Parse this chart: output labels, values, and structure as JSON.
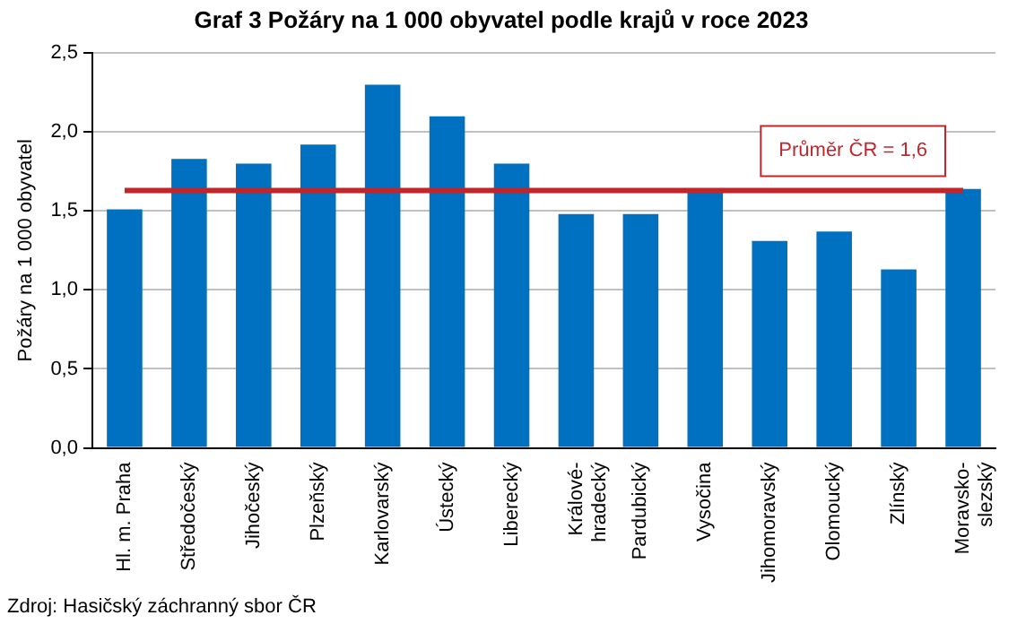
{
  "chart_data": {
    "type": "bar",
    "title": "Graf 3 Požáry na 1 000 obyvatel podle krajů v roce 2023",
    "ylabel": "Požáry na 1 000 obyvatel",
    "categories": [
      "Hl. m. Praha",
      "Středočeský",
      "Jihočeský",
      "Plzeňský",
      "Karlovarský",
      "Ústecký",
      "Liberecký",
      "Králové-\nhradecký",
      "Pardubický",
      "Vysočina",
      "Jihomoravský",
      "Olomoucký",
      "Zlínský",
      "Moravsko-\nslezský"
    ],
    "values": [
      1.51,
      1.83,
      1.8,
      1.92,
      2.3,
      2.1,
      1.8,
      1.48,
      1.48,
      1.64,
      1.31,
      1.37,
      1.13,
      1.64
    ],
    "color": "#0070c0",
    "ylim": [
      0,
      2.5
    ],
    "yticks": [
      {
        "value": 0,
        "label": "0,0"
      },
      {
        "value": 0.5,
        "label": "0,5"
      },
      {
        "value": 1,
        "label": "1,0"
      },
      {
        "value": 1.5,
        "label": "1,5"
      },
      {
        "value": 2,
        "label": "2,0"
      },
      {
        "value": 2.5,
        "label": "2,5"
      }
    ],
    "grid": "y",
    "legend": false,
    "ref_lines": [
      {
        "axis": "y",
        "value": 1.63,
        "label": "Průměr ČR = 1,6",
        "color": "#c0272d",
        "line_style": "solid"
      }
    ],
    "annotations": [
      "Zdroj: Hasičský záchranný sbor ČR"
    ]
  }
}
